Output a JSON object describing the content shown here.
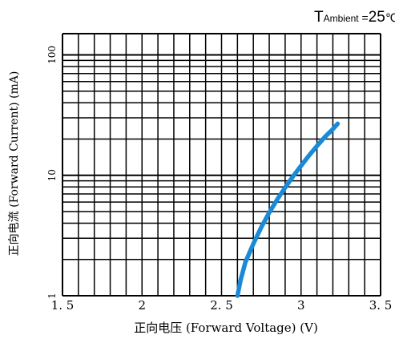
{
  "chart_data": {
    "type": "line",
    "annotation": {
      "prefix": "T",
      "subscript": "Ambient",
      "equals": " =",
      "value": "25",
      "unit": "℃"
    },
    "xlabel": "正向电压 (Forward  Voltage) (V)",
    "ylabel": "正向电流 (Forward  Current) (mA)",
    "x_ticks": [
      {
        "value": 1.5,
        "label": "1. 5"
      },
      {
        "value": 2.0,
        "label": "2"
      },
      {
        "value": 2.5,
        "label": "2. 5"
      },
      {
        "value": 3.0,
        "label": "3"
      },
      {
        "value": 3.5,
        "label": "3. 5"
      }
    ],
    "y_ticks": [
      {
        "value": 1,
        "label": "1"
      },
      {
        "value": 10,
        "label": "10"
      },
      {
        "value": 100,
        "label": "100"
      }
    ],
    "xlim": [
      1.5,
      3.5
    ],
    "ylim": [
      1,
      150
    ],
    "y_scale": "log",
    "grid": true,
    "line_color": "#1a8ad6",
    "grid_color": "#000000",
    "series": [
      {
        "x": [
          2.6,
          2.62,
          2.65,
          2.7,
          2.75,
          2.8,
          2.85,
          2.9,
          2.95,
          3.0,
          3.05,
          3.1,
          3.15,
          3.2,
          3.23
        ],
        "y": [
          1.0,
          1.35,
          1.9,
          2.7,
          3.7,
          4.9,
          6.3,
          7.9,
          9.8,
          12.0,
          14.6,
          17.5,
          20.8,
          24.2,
          26.8
        ]
      }
    ]
  }
}
